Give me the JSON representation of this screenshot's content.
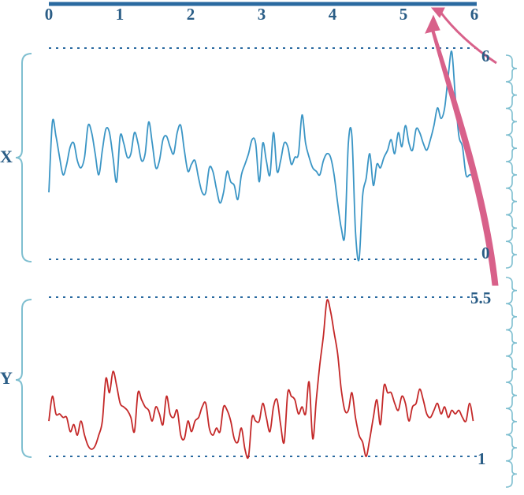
{
  "colors": {
    "axis": "#2a6aa0",
    "bracket": "#7fbfd0",
    "series_x": "#3a95c5",
    "series_y": "#c42828",
    "arrow": "#d8618a",
    "label": "#2a5d86"
  },
  "top_axis": {
    "ticks": [
      "0",
      "1",
      "2",
      "3",
      "4",
      "5",
      "6"
    ]
  },
  "panel_x": {
    "label": "X",
    "max_label": "6",
    "min_label": "0"
  },
  "panel_y": {
    "label": "Y",
    "max_label": "5.5",
    "min_label": "1"
  },
  "chart_data": [
    {
      "type": "line",
      "name": "X",
      "x_range": [
        0,
        6
      ],
      "y_range": [
        0,
        6
      ],
      "x": [
        0.0,
        0.05,
        0.1,
        0.15,
        0.2,
        0.25,
        0.3,
        0.35,
        0.4,
        0.45,
        0.5,
        0.55,
        0.6,
        0.65,
        0.7,
        0.75,
        0.8,
        0.85,
        0.9,
        0.95,
        1.0,
        1.05,
        1.1,
        1.15,
        1.2,
        1.25,
        1.3,
        1.35,
        1.4,
        1.45,
        1.5,
        1.55,
        1.6,
        1.65,
        1.7,
        1.75,
        1.8,
        1.85,
        1.9,
        1.95,
        2.0,
        2.05,
        2.1,
        2.15,
        2.2,
        2.25,
        2.3,
        2.35,
        2.4,
        2.45,
        2.5,
        2.55,
        2.6,
        2.65,
        2.7,
        2.75,
        2.8,
        2.85,
        2.9,
        2.95,
        3.0,
        3.05,
        3.1,
        3.15,
        3.2,
        3.25,
        3.3,
        3.35,
        3.4,
        3.45,
        3.5,
        3.55,
        3.6,
        3.65,
        3.7,
        3.75,
        3.8,
        3.85,
        3.9,
        3.95,
        4.0,
        4.05,
        4.1,
        4.15,
        4.2,
        4.25,
        4.3,
        4.35,
        4.4,
        4.45,
        4.5,
        4.55,
        4.6,
        4.65,
        4.7,
        4.75,
        4.8,
        4.85,
        4.9,
        4.95,
        5.0,
        5.05,
        5.1,
        5.15,
        5.2,
        5.25,
        5.3,
        5.35,
        5.4,
        5.45,
        5.5,
        5.55,
        5.6,
        5.65,
        5.7,
        5.75,
        5.8,
        5.85,
        5.9,
        5.95
      ],
      "y": [
        1.9,
        3.9,
        3.5,
        2.9,
        2.4,
        2.7,
        3.2,
        3.3,
        2.8,
        2.6,
        2.9,
        3.8,
        3.6,
        3.0,
        2.4,
        3.1,
        3.7,
        3.6,
        2.9,
        2.2,
        3.5,
        3.3,
        2.9,
        3.0,
        3.6,
        3.3,
        2.8,
        3.0,
        3.9,
        3.3,
        2.6,
        2.8,
        3.4,
        3.5,
        3.2,
        3.0,
        3.6,
        3.8,
        3.1,
        2.5,
        2.7,
        2.8,
        2.3,
        1.9,
        1.9,
        2.6,
        2.5,
        2.0,
        1.6,
        1.9,
        2.5,
        2.2,
        2.1,
        1.7,
        2.4,
        2.7,
        3.0,
        3.4,
        3.3,
        2.2,
        3.3,
        2.8,
        2.4,
        3.6,
        2.5,
        2.8,
        3.3,
        3.2,
        2.7,
        2.9,
        3.0,
        4.1,
        3.3,
        2.9,
        2.6,
        2.5,
        2.4,
        2.8,
        3.0,
        2.9,
        2.4,
        1.6,
        0.9,
        0.7,
        3.3,
        3.5,
        0.8,
        0.0,
        1.8,
        2.3,
        3.0,
        2.1,
        2.7,
        2.6,
        2.9,
        3.1,
        3.4,
        3.0,
        3.6,
        3.2,
        3.8,
        3.3,
        3.1,
        3.7,
        3.6,
        3.3,
        3.1,
        3.4,
        3.8,
        4.3,
        4.0,
        4.3,
        5.2,
        5.9,
        4.6,
        3.5,
        3.2,
        2.4,
        2.4,
        2.4
      ]
    },
    {
      "type": "line",
      "name": "Y",
      "x_range": [
        0,
        6
      ],
      "y_range": [
        1,
        5.5
      ],
      "x": [
        0.0,
        0.05,
        0.1,
        0.15,
        0.2,
        0.25,
        0.3,
        0.35,
        0.4,
        0.45,
        0.5,
        0.55,
        0.6,
        0.65,
        0.7,
        0.75,
        0.8,
        0.85,
        0.9,
        0.95,
        1.0,
        1.05,
        1.1,
        1.15,
        1.2,
        1.25,
        1.3,
        1.35,
        1.4,
        1.45,
        1.5,
        1.55,
        1.6,
        1.65,
        1.7,
        1.75,
        1.8,
        1.85,
        1.9,
        1.95,
        2.0,
        2.05,
        2.1,
        2.15,
        2.2,
        2.25,
        2.3,
        2.35,
        2.4,
        2.45,
        2.5,
        2.55,
        2.6,
        2.65,
        2.7,
        2.75,
        2.8,
        2.85,
        2.9,
        2.95,
        3.0,
        3.05,
        3.1,
        3.15,
        3.2,
        3.25,
        3.3,
        3.35,
        3.4,
        3.45,
        3.5,
        3.55,
        3.6,
        3.65,
        3.7,
        3.75,
        3.8,
        3.85,
        3.9,
        3.95,
        4.0,
        4.05,
        4.1,
        4.15,
        4.2,
        4.25,
        4.3,
        4.35,
        4.4,
        4.45,
        4.5,
        4.55,
        4.6,
        4.65,
        4.7,
        4.75,
        4.8,
        4.85,
        4.9,
        4.95,
        5.0,
        5.05,
        5.1,
        5.15,
        5.2,
        5.25,
        5.3,
        5.35,
        5.4,
        5.45,
        5.5,
        5.55,
        5.6,
        5.65,
        5.7,
        5.75,
        5.8,
        5.85,
        5.9,
        5.95
      ],
      "y": [
        2.0,
        2.7,
        2.2,
        2.2,
        2.1,
        2.1,
        1.7,
        1.9,
        1.6,
        2.0,
        1.6,
        1.3,
        1.2,
        1.3,
        1.6,
        2.0,
        3.2,
        2.8,
        3.4,
        3.0,
        2.5,
        2.4,
        2.3,
        2.1,
        1.7,
        2.8,
        2.6,
        2.4,
        2.3,
        2.0,
        2.4,
        2.2,
        1.9,
        2.7,
        2.2,
        2.1,
        2.3,
        1.6,
        1.5,
        2.0,
        1.7,
        2.0,
        2.1,
        2.4,
        2.5,
        1.8,
        1.6,
        1.8,
        1.7,
        2.4,
        2.3,
        2.0,
        1.5,
        1.4,
        1.8,
        1.2,
        1.0,
        2.1,
        2.0,
        2.0,
        2.5,
        2.1,
        1.7,
        2.4,
        2.6,
        1.9,
        1.4,
        2.8,
        2.7,
        2.6,
        2.2,
        2.4,
        2.2,
        3.1,
        1.5,
        2.6,
        3.6,
        4.4,
        5.4,
        5.1,
        4.5,
        3.9,
        2.9,
        2.3,
        2.3,
        2.8,
        2.1,
        1.6,
        1.4,
        1.0,
        1.5,
        2.1,
        2.6,
        1.9,
        3.0,
        2.8,
        2.8,
        2.5,
        2.3,
        2.7,
        2.5,
        2.0,
        2.4,
        2.5,
        2.9,
        2.6,
        2.2,
        2.1,
        2.3,
        2.5,
        2.2,
        2.4,
        2.1,
        2.3,
        2.2,
        2.3,
        2.1,
        2.0,
        2.5,
        2.0
      ]
    }
  ]
}
